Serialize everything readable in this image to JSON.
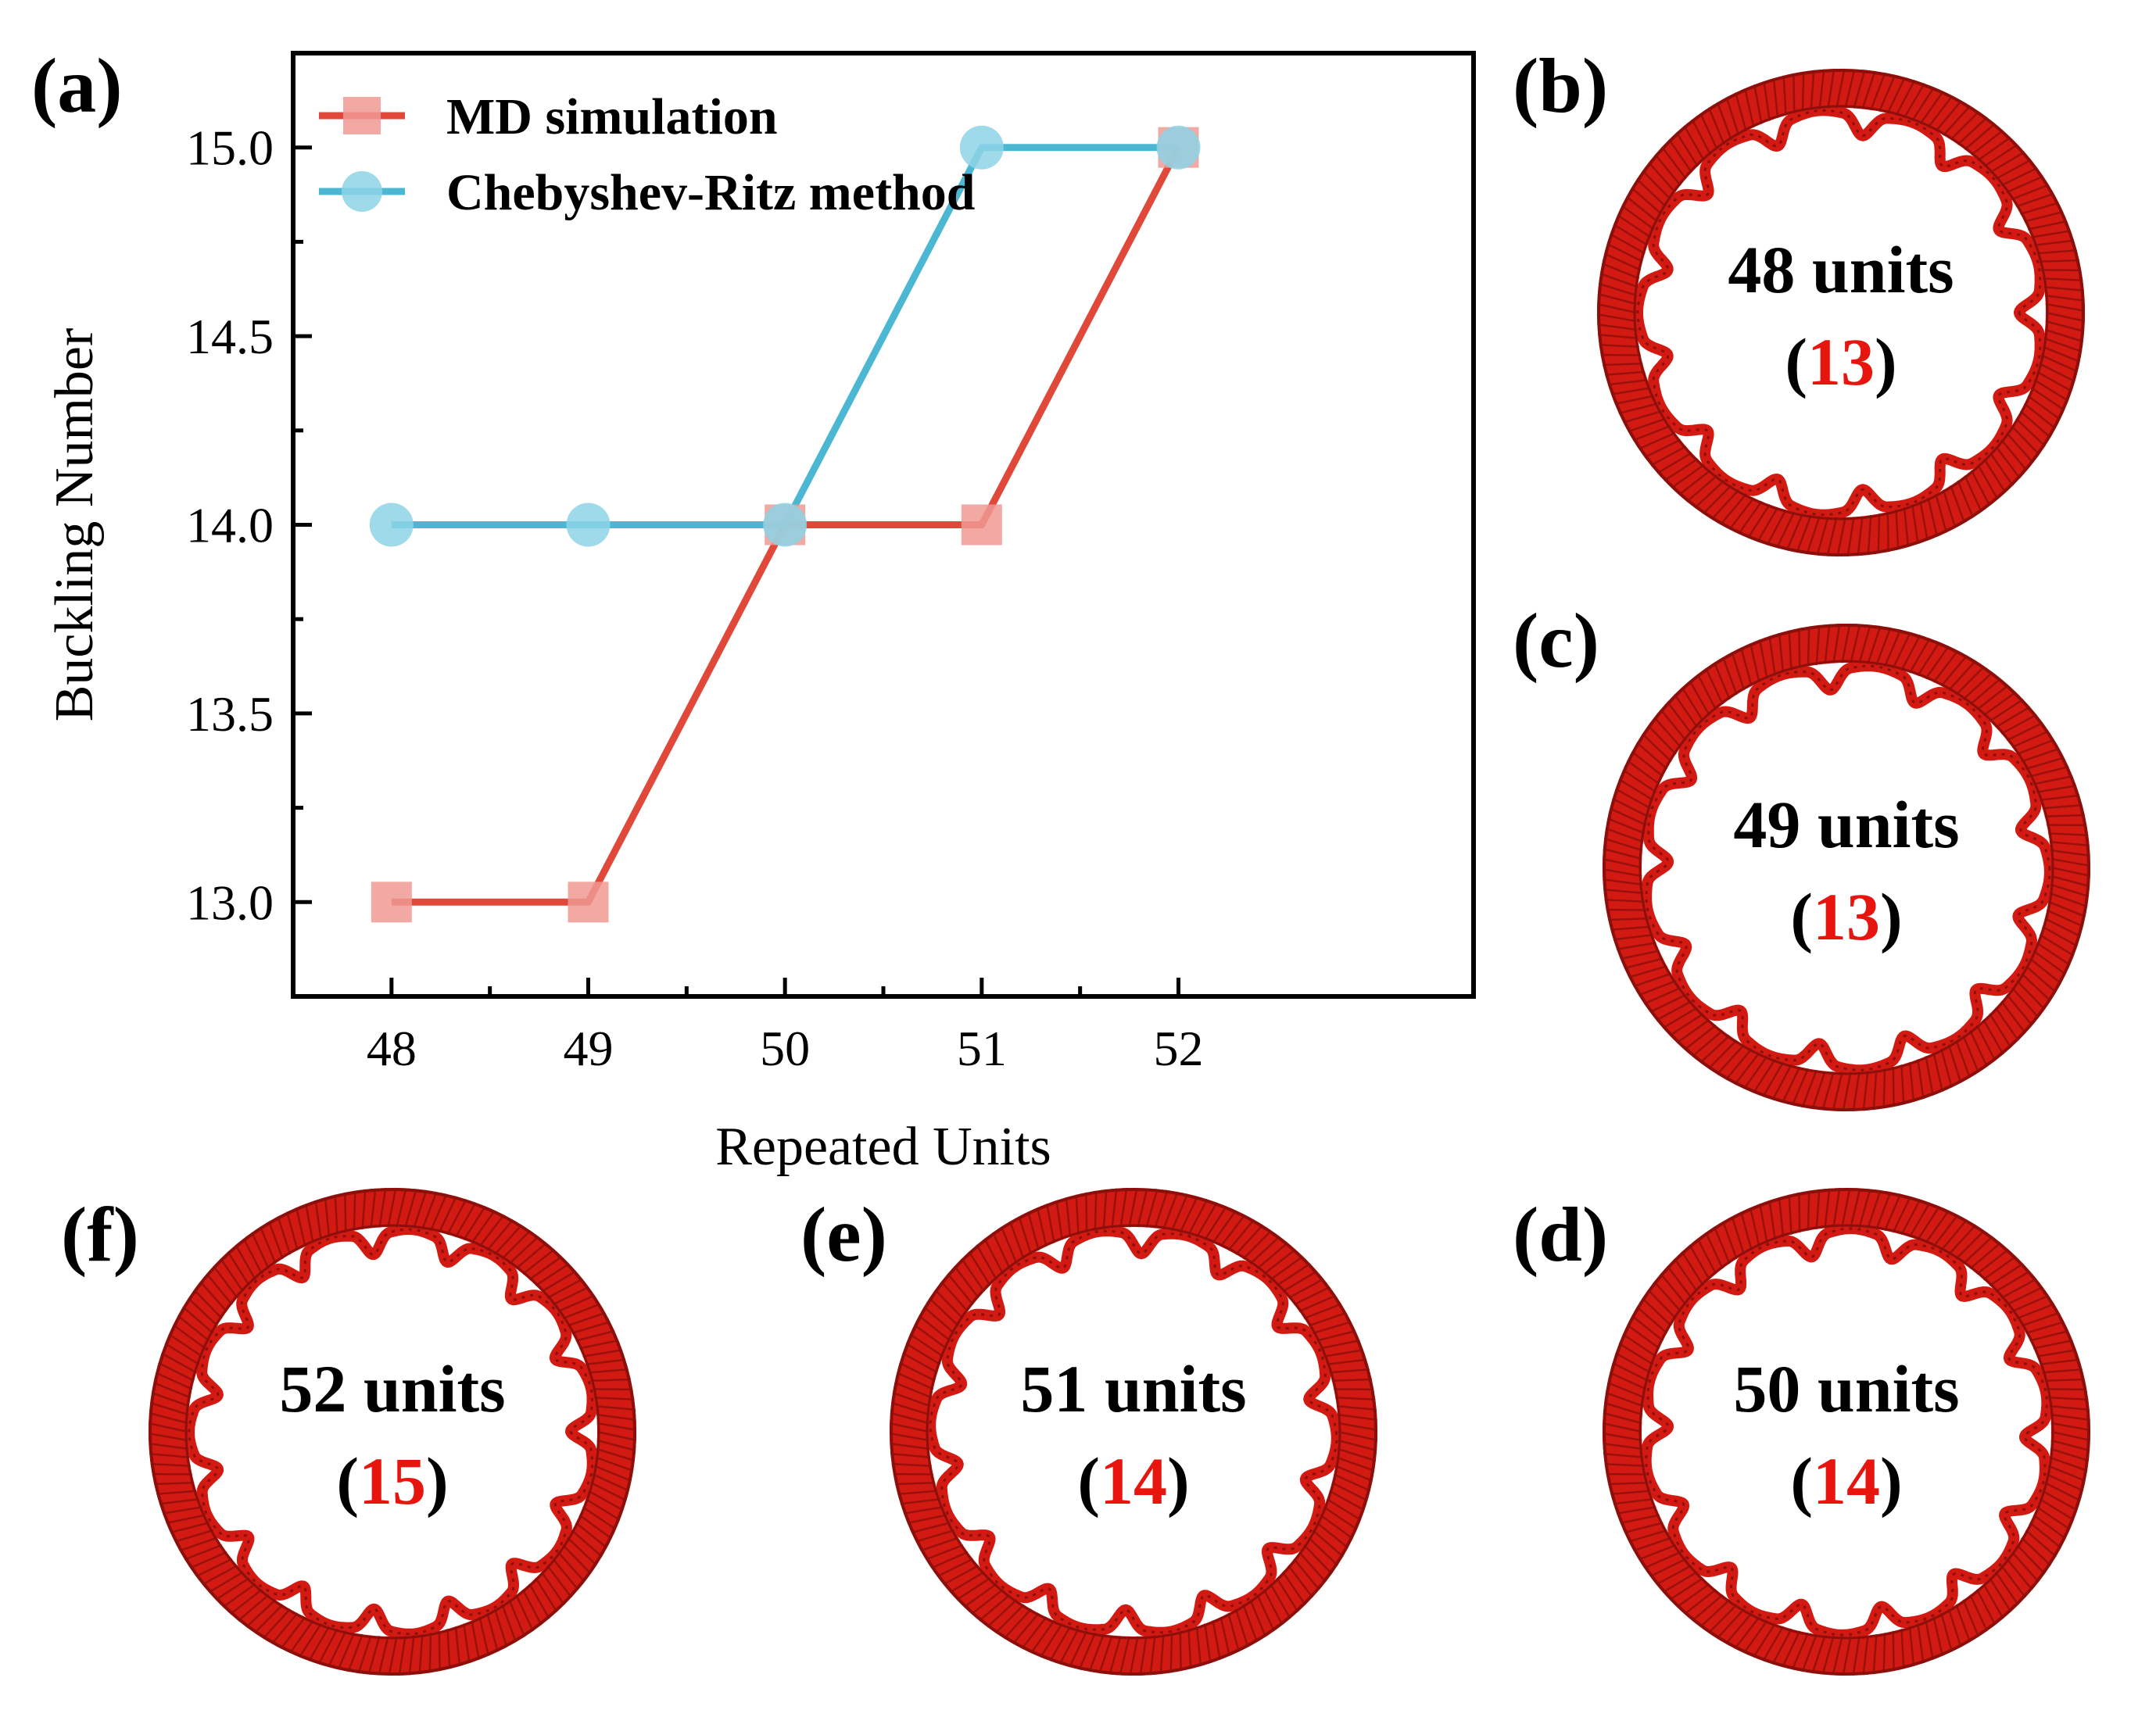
{
  "colors": {
    "md": "#e0483a",
    "md_marker": "#f09a93",
    "cr": "#4bb7d3",
    "cr_marker": "#8dd3e6",
    "ring": "#d21a12",
    "ring_dark": "#8c0f0b",
    "count": "#e8140e"
  },
  "panel_a_label": "(a)",
  "chart_data": {
    "type": "line",
    "x": [
      48,
      49,
      50,
      51,
      52
    ],
    "series": [
      {
        "name": "MD simulation",
        "marker": "square",
        "values": [
          13.0,
          13.0,
          14.0,
          14.0,
          15.0
        ]
      },
      {
        "name": "Chebyshev-Ritz method",
        "marker": "circle",
        "values": [
          14.0,
          14.0,
          14.0,
          15.0,
          15.0
        ]
      }
    ],
    "xlabel": "Repeated Units",
    "ylabel": "Buckling Number",
    "xlim": [
      47.5,
      53.5
    ],
    "ylim": [
      12.75,
      15.25
    ],
    "xticks": [
      "48",
      "49",
      "50",
      "51",
      "52"
    ],
    "yticks": [
      "13.0",
      "13.5",
      "14.0",
      "14.5",
      "15.0"
    ],
    "legend": "top-left",
    "grid": false
  },
  "panels": [
    {
      "letter": "(b)",
      "units": 48,
      "units_label": "48 units",
      "count": "13",
      "lobes": 13
    },
    {
      "letter": "(c)",
      "units": 49,
      "units_label": "49 units",
      "count": "13",
      "lobes": 13
    },
    {
      "letter": "(d)",
      "units": 50,
      "units_label": "50 units",
      "count": "14",
      "lobes": 14
    },
    {
      "letter": "(e)",
      "units": 51,
      "units_label": "51 units",
      "count": "14",
      "lobes": 14
    },
    {
      "letter": "(f)",
      "units": 52,
      "units_label": "52 units",
      "count": "15",
      "lobes": 15
    }
  ]
}
